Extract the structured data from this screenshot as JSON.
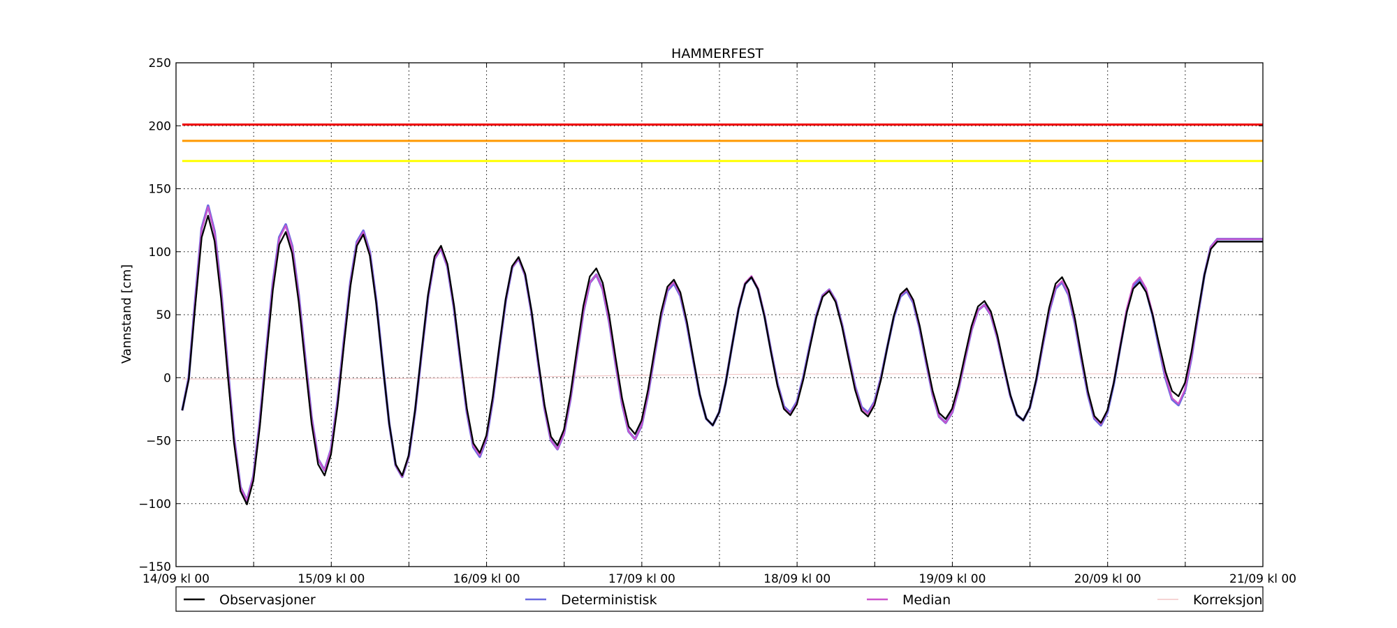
{
  "chart_data": {
    "type": "line",
    "title": "HAMMERFEST",
    "xlabel": "",
    "ylabel": "Vannstand [cm]",
    "ylim": [
      -150,
      250
    ],
    "y_ticks": [
      -150,
      -100,
      -50,
      0,
      50,
      100,
      150,
      200,
      250
    ],
    "y_tick_labels": [
      "−150",
      "−100",
      "−50",
      "0",
      "50",
      "100",
      "150",
      "200",
      "250"
    ],
    "x_range_days": [
      0,
      7
    ],
    "x_ticks": [
      0,
      1,
      2,
      3,
      4,
      5,
      6,
      7
    ],
    "x_tick_labels": [
      "14/09 kl 00",
      "15/09 kl 00",
      "16/09 kl 00",
      "17/09 kl 00",
      "18/09 kl 00",
      "19/09 kl 00",
      "20/09 kl 00",
      "21/09 kl 00"
    ],
    "x_minor_ticks": [
      0.5,
      1.5,
      2.5,
      3.5,
      4.5,
      5.5,
      6.5
    ],
    "grid": true,
    "legend_position": "bottom",
    "threshold_lines": [
      {
        "value": 201,
        "color": "#ee0000"
      },
      {
        "value": 188,
        "color": "#ff9900"
      },
      {
        "value": 172,
        "color": "#ffff00"
      }
    ],
    "series": [
      {
        "name": "Observasjoner",
        "color": "#000000",
        "tide": {
          "times": [
            0.2,
            0.45,
            0.7,
            0.95,
            1.2,
            1.45,
            1.7,
            1.95,
            2.2,
            2.45,
            2.7,
            2.95,
            3.2,
            3.45,
            3.7,
            3.95,
            4.2,
            4.45,
            4.7,
            4.95,
            5.2,
            5.45,
            5.7,
            5.95,
            6.2,
            6.45,
            6.7,
            6.95
          ],
          "values": [
            129,
            -101,
            116,
            -78,
            114,
            -78,
            105,
            -60,
            96,
            -54,
            87,
            -45,
            78,
            -38,
            80,
            -30,
            69,
            -31,
            71,
            -33,
            61,
            -34,
            80,
            -36,
            76,
            -15,
            108,
            108
          ]
        }
      },
      {
        "name": "Deterministisk",
        "color": "#6a6adf",
        "tide": {
          "times": [
            0.2,
            0.45,
            0.7,
            0.95,
            1.2,
            1.45,
            1.7,
            1.95,
            2.2,
            2.45,
            2.7,
            2.95,
            3.2,
            3.45,
            3.7,
            3.95,
            4.2,
            4.45,
            4.7,
            4.95,
            5.2,
            5.45,
            5.7,
            5.95,
            6.2,
            6.45,
            6.7,
            6.95
          ],
          "values": [
            137,
            -98,
            122,
            -74,
            117,
            -79,
            103,
            -63,
            95,
            -57,
            82,
            -49,
            75,
            -38,
            80,
            -28,
            70,
            -28,
            69,
            -36,
            58,
            -34,
            76,
            -38,
            78,
            -22,
            110,
            110
          ]
        }
      },
      {
        "name": "Median",
        "color": "#cc55cc",
        "tide": {
          "times": [
            0.2,
            0.45,
            0.7,
            0.95,
            1.2,
            1.45,
            1.7,
            1.95,
            2.2,
            2.45,
            2.7,
            2.95,
            3.2,
            3.45,
            3.7,
            3.95,
            4.2,
            4.45,
            4.7,
            4.95,
            5.2,
            5.45,
            5.7,
            5.95,
            6.2,
            6.45,
            6.7,
            6.95
          ],
          "values": [
            136,
            -98,
            121,
            -74,
            116,
            -79,
            103,
            -62,
            95,
            -57,
            82,
            -49,
            76,
            -38,
            81,
            -29,
            70,
            -29,
            70,
            -36,
            58,
            -34,
            77,
            -37,
            80,
            -21,
            110,
            110
          ]
        }
      },
      {
        "name": "Korreksjon",
        "color": "#f2c6c6",
        "points": {
          "x": [
            0,
            1,
            2,
            3,
            4,
            5,
            6,
            7
          ],
          "y": [
            -1,
            -1,
            0,
            2,
            3,
            3,
            3,
            3
          ]
        }
      }
    ]
  }
}
